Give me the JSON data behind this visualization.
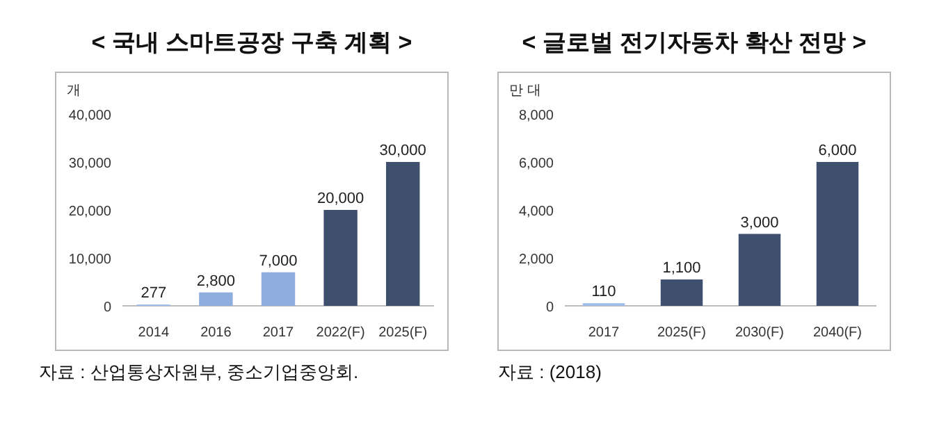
{
  "chart_data": [
    {
      "type": "bar",
      "title": "< 국내 스마트공장 구축 계획 >",
      "ylabel": "개",
      "categories": [
        "2014",
        "2016",
        "2017",
        "2022(F)",
        "2025(F)"
      ],
      "values": [
        277,
        2800,
        7000,
        20000,
        30000
      ],
      "colors": [
        "#9fbde8",
        "#8eaee0",
        "#8eaee0",
        "#3f4f6e",
        "#3f4f6e"
      ],
      "ylim": [
        0,
        40000
      ],
      "yticks": [
        {
          "value": 0,
          "label": "0"
        },
        {
          "value": 10000,
          "label": "10,000"
        },
        {
          "value": 20000,
          "label": "20,000"
        },
        {
          "value": 30000,
          "label": "30,000"
        },
        {
          "value": 40000,
          "label": "40,000"
        }
      ],
      "value_labels": [
        "277",
        "2,800",
        "7,000",
        "20,000",
        "30,000"
      ],
      "grid": false,
      "annotations": [
        "자료 : 산업통상자원부, 중소기업중앙회."
      ]
    },
    {
      "type": "bar",
      "title": "< 글로벌 전기자동차 확산 전망 >",
      "ylabel": "만 대",
      "categories": [
        "2017",
        "2025(F)",
        "2030(F)",
        "2040(F)"
      ],
      "values": [
        110,
        1100,
        3000,
        6000
      ],
      "colors": [
        "#9fbde8",
        "#3f4f6e",
        "#3f4f6e",
        "#3f4f6e"
      ],
      "ylim": [
        0,
        8000
      ],
      "yticks": [
        {
          "value": 0,
          "label": "0"
        },
        {
          "value": 2000,
          "label": "2,000"
        },
        {
          "value": 4000,
          "label": "4,000"
        },
        {
          "value": 6000,
          "label": "6,000"
        },
        {
          "value": 8000,
          "label": "8,000"
        }
      ],
      "value_labels": [
        "110",
        "1,100",
        "3,000",
        "6,000"
      ],
      "grid": false,
      "annotations": [
        "자료 : (2018)"
      ]
    }
  ]
}
